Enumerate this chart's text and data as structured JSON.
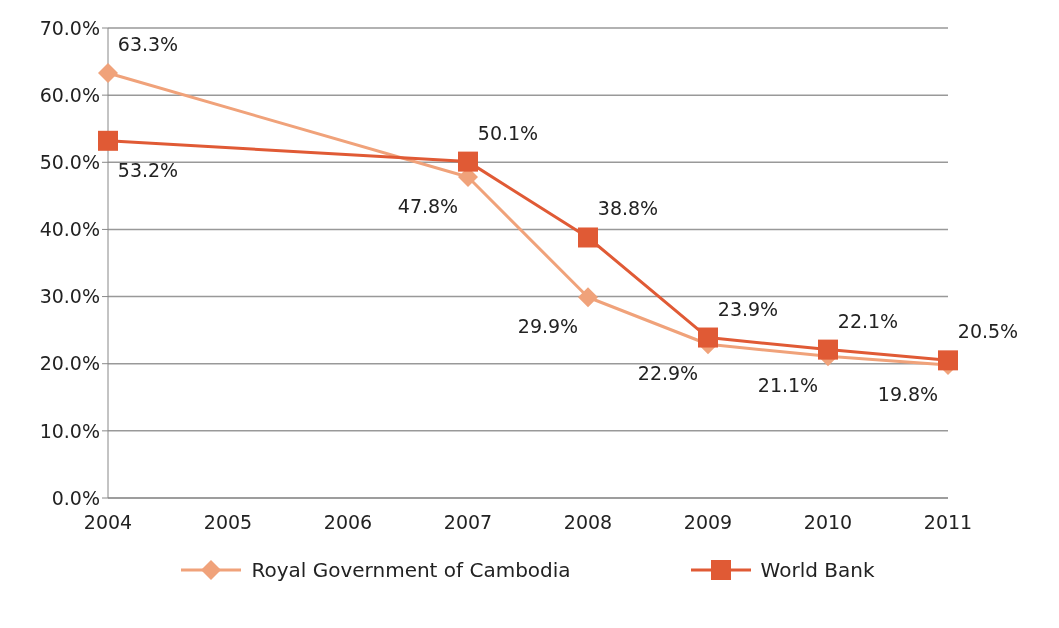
{
  "chart_data": {
    "type": "line",
    "categories": [
      "2004",
      "2005",
      "2006",
      "2007",
      "2008",
      "2009",
      "2010",
      "2011"
    ],
    "series": [
      {
        "name": "Royal Government of Cambodia",
        "color": "#f0a27a",
        "marker": "diamond",
        "values": [
          63.3,
          null,
          null,
          47.8,
          29.9,
          22.9,
          21.1,
          19.8
        ],
        "value_labels": [
          "63.3%",
          null,
          null,
          "47.8%",
          "29.9%",
          "22.9%",
          "21.1%",
          "19.8%"
        ]
      },
      {
        "name": "World Bank",
        "color": "#e05a35",
        "marker": "square",
        "values": [
          53.2,
          null,
          null,
          50.1,
          38.8,
          23.9,
          22.1,
          20.5
        ],
        "value_labels": [
          "53.2%",
          null,
          null,
          "50.1%",
          "38.8%",
          "23.9%",
          "22.1%",
          "20.5%"
        ]
      }
    ],
    "ylim": [
      0,
      70
    ],
    "yticks": [
      {
        "value": 0,
        "label": "0.0%"
      },
      {
        "value": 10,
        "label": "10.0%"
      },
      {
        "value": 20,
        "label": "20.0%"
      },
      {
        "value": 30,
        "label": "30.0%"
      },
      {
        "value": 40,
        "label": "40.0%"
      },
      {
        "value": 50,
        "label": "50.0%"
      },
      {
        "value": 60,
        "label": "60.0%"
      },
      {
        "value": 70,
        "label": "70.0%"
      }
    ],
    "grid": "y",
    "legend": "bottom",
    "line_style": "solid"
  }
}
